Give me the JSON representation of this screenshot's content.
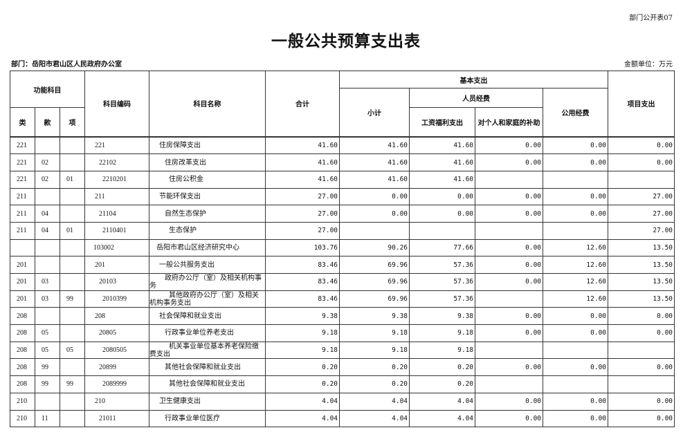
{
  "form_number": "部门公开表07",
  "title": "一般公共预算支出表",
  "department": "部门：岳阳市君山区人民政府办公室",
  "unit": "金额单位：万元",
  "headers": {
    "func_subject": "功能科目",
    "lei": "类",
    "kuan": "款",
    "xiang": "项",
    "code": "科目编码",
    "name": "科目名称",
    "total": "合计",
    "basic": "基本支出",
    "subtotal": "小计",
    "personnel": "人员经费",
    "salary": "工资福利支出",
    "subsidy": "对个人和家庭的补助",
    "public": "公用经费",
    "project": "项目支出"
  },
  "rows": [
    [
      "221",
      "",
      "",
      "221",
      "住房保障支出",
      "41.60",
      "41.60",
      "41.60",
      "0.00",
      "0.00",
      "0.00"
    ],
    [
      "221",
      "02",
      "",
      "22102",
      "住房改革支出",
      "41.60",
      "41.60",
      "41.60",
      "0.00",
      "0.00",
      "0.00"
    ],
    [
      "221",
      "02",
      "01",
      "2210201",
      "住房公积金",
      "41.60",
      "41.60",
      "41.60",
      "",
      "",
      ""
    ],
    [
      "211",
      "",
      "",
      "211",
      "节能环保支出",
      "27.00",
      "0.00",
      "0.00",
      "0.00",
      "0.00",
      "27.00"
    ],
    [
      "211",
      "04",
      "",
      "21104",
      "自然生态保护",
      "27.00",
      "0.00",
      "0.00",
      "0.00",
      "0.00",
      "27.00"
    ],
    [
      "211",
      "04",
      "01",
      "2110401",
      "生态保护",
      "27.00",
      "",
      "",
      "",
      "",
      "27.00"
    ],
    [
      "",
      "",
      "",
      "103002",
      "岳阳市君山区经济研究中心",
      "103.76",
      "90.26",
      "77.66",
      "0.00",
      "12.60",
      "13.50"
    ],
    [
      "201",
      "",
      "",
      "201",
      "一般公共服务支出",
      "83.46",
      "69.96",
      "57.36",
      "0.00",
      "12.60",
      "13.50"
    ],
    [
      "201",
      "03",
      "",
      "20103",
      "政府办公厅（室）及相关机构事务",
      "83.46",
      "69.96",
      "57.36",
      "0.00",
      "12.60",
      "13.50"
    ],
    [
      "201",
      "03",
      "99",
      "2010399",
      "其他政府办公厅（室）及相关机构事务支出",
      "83.46",
      "69.96",
      "57.36",
      "",
      "12.60",
      "13.50"
    ],
    [
      "208",
      "",
      "",
      "208",
      "社会保障和就业支出",
      "9.38",
      "9.38",
      "9.38",
      "0.00",
      "0.00",
      "0.00"
    ],
    [
      "208",
      "05",
      "",
      "20805",
      "行政事业单位养老支出",
      "9.18",
      "9.18",
      "9.18",
      "0.00",
      "0.00",
      "0.00"
    ],
    [
      "208",
      "05",
      "05",
      "2080505",
      "机关事业单位基本养老保险缴费支出",
      "9.18",
      "9.18",
      "9.18",
      "",
      "",
      ""
    ],
    [
      "208",
      "99",
      "",
      "20899",
      "其他社会保障和就业支出",
      "0.20",
      "0.20",
      "0.20",
      "0.00",
      "0.00",
      "0.00"
    ],
    [
      "208",
      "99",
      "99",
      "2089999",
      "其他社会保障和就业支出",
      "0.20",
      "0.20",
      "0.20",
      "",
      "",
      ""
    ],
    [
      "210",
      "",
      "",
      "210",
      "卫生健康支出",
      "4.04",
      "4.04",
      "4.04",
      "0.00",
      "0.00",
      "0.00"
    ],
    [
      "210",
      "11",
      "",
      "21011",
      "行政事业单位医疗",
      "4.04",
      "4.04",
      "4.04",
      "0.00",
      "0.00",
      "0.00"
    ]
  ]
}
